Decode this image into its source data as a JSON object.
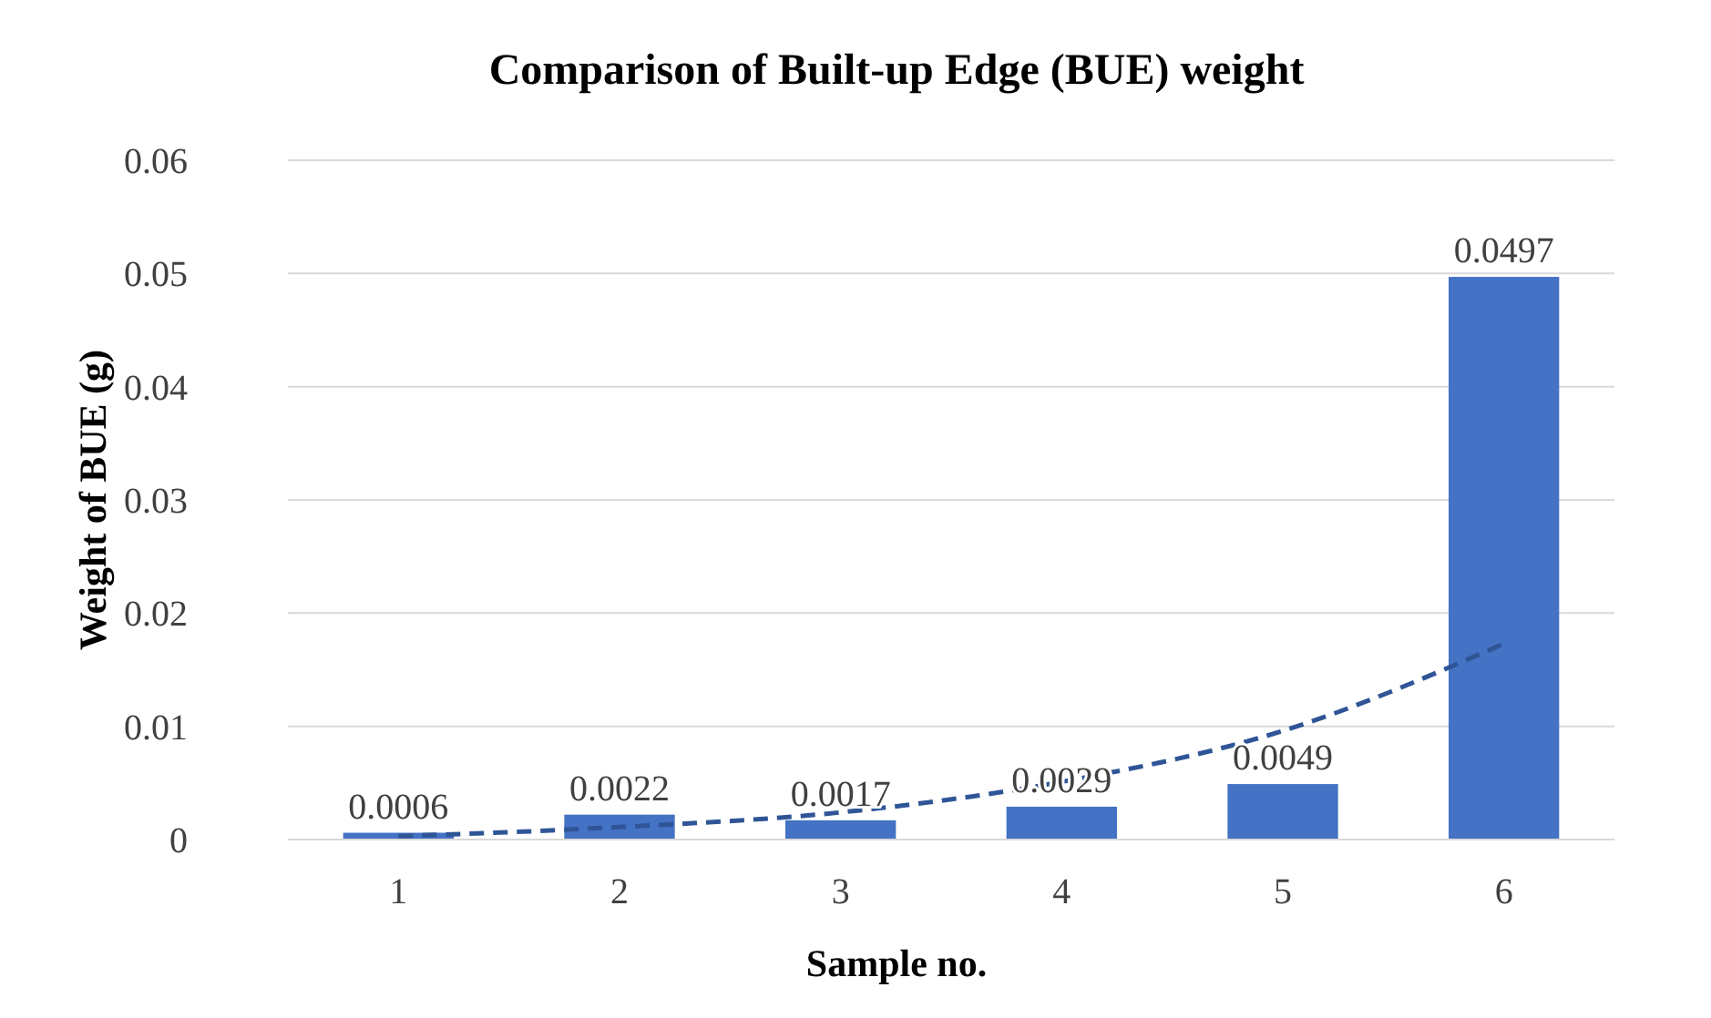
{
  "chart_data": {
    "type": "bar",
    "title": "Comparison of Built-up Edge (BUE) weight",
    "xlabel": "Sample no.",
    "ylabel": "Weight of BUE (g)",
    "categories": [
      "1",
      "2",
      "3",
      "4",
      "5",
      "6"
    ],
    "series": [
      {
        "color": "#4472c4",
        "values": [
          0.0006,
          0.0022,
          0.0017,
          0.0029,
          0.0049,
          0.0497
        ],
        "value_labels": [
          "0.0006",
          "0.0022",
          "0.0017",
          "0.0029",
          "0.0049",
          "0.0497"
        ]
      },
      {
        "type": "line",
        "color": "#2f5597",
        "line_style": "dashed",
        "marker": "none",
        "values": [
          0.0003,
          0.0011,
          0.0024,
          0.0051,
          0.0096,
          0.0173
        ]
      }
    ],
    "ylim": [
      0,
      0.06
    ],
    "yticks": [
      0,
      0.01,
      0.02,
      0.03,
      0.04,
      0.05,
      0.06
    ],
    "grid": "y"
  }
}
